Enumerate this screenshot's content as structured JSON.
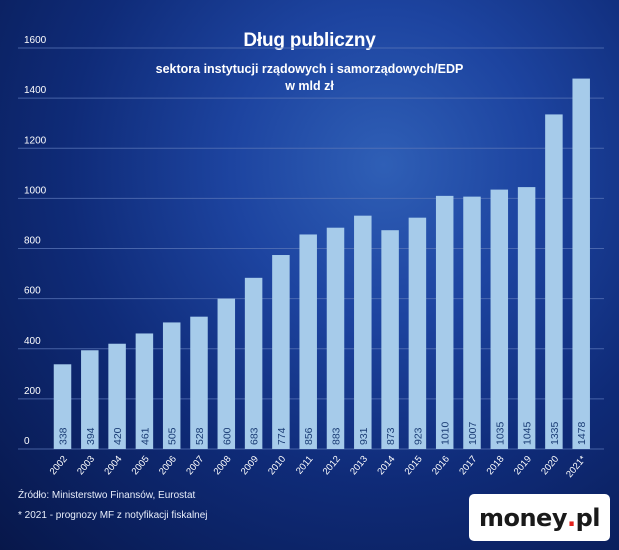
{
  "chart_data": {
    "type": "bar",
    "title": "Dług publiczny",
    "subtitle_line1": "sektora instytucji rządowych i samorządowych/EDP",
    "subtitle_line2": "w mld zł",
    "categories": [
      "2002",
      "2003",
      "2004",
      "2005",
      "2006",
      "2007",
      "2008",
      "2009",
      "2010",
      "2011",
      "2012",
      "2013",
      "2014",
      "2015",
      "2016",
      "2017",
      "2018",
      "2019",
      "2020",
      "2021*"
    ],
    "values": [
      338,
      394,
      420,
      461,
      505,
      528,
      600,
      683,
      774,
      856,
      883,
      931,
      873,
      923,
      1010,
      1007,
      1035,
      1045,
      1335,
      1478
    ],
    "value_labels": [
      "338",
      "394",
      "420",
      "461",
      "505",
      "528",
      "600",
      "683",
      "774",
      "856",
      "883",
      "931",
      "873",
      "923",
      "1010",
      "1007",
      "1035",
      "1045",
      "1335",
      "1478"
    ],
    "ylim": [
      0,
      1600
    ],
    "yticks": [
      "0",
      "200",
      "400",
      "600",
      "800",
      "1000",
      "1200",
      "1400",
      "1600"
    ],
    "grid": true,
    "bar_color": "#a6cbea",
    "value_label_color": "#1b3d75",
    "gridline_color": "#5a76b8"
  },
  "footer": {
    "source": "Źródło: Ministerstwo Finansów, Eurostat",
    "forecast_note": "* 2021 - prognozy MF z notyfikacji fiskalnej"
  },
  "brand": {
    "name_part1": "money",
    "name_dot": ".",
    "name_part2": "pl"
  }
}
